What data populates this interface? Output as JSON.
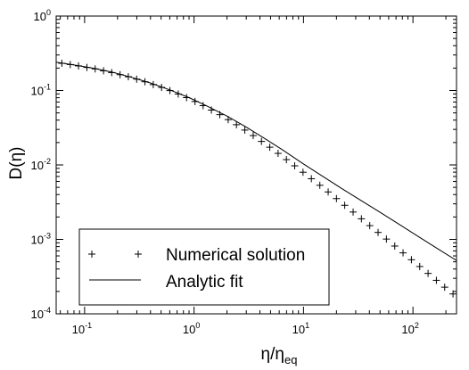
{
  "chart_data": {
    "type": "line",
    "xscale": "log",
    "yscale": "log",
    "xlim": [
      0.055,
      250
    ],
    "ylim": [
      0.0001,
      1
    ],
    "xticks": [
      {
        "base": "10",
        "exp": "-1",
        "value": 0.1
      },
      {
        "base": "10",
        "exp": "0",
        "value": 1
      },
      {
        "base": "10",
        "exp": "1",
        "value": 10
      },
      {
        "base": "10",
        "exp": "2",
        "value": 100
      }
    ],
    "yticks": [
      {
        "base": "10",
        "exp": "-4",
        "value": 0.0001
      },
      {
        "base": "10",
        "exp": "-3",
        "value": 0.001
      },
      {
        "base": "10",
        "exp": "-2",
        "value": 0.01
      },
      {
        "base": "10",
        "exp": "-1",
        "value": 0.1
      },
      {
        "base": "10",
        "exp": "0",
        "value": 1
      }
    ],
    "xlabel": {
      "main": "η/η",
      "sub": "eq"
    },
    "ylabel": "D(η)",
    "grid": false,
    "legend": {
      "placement": "bottom-left",
      "entries": [
        "Numerical solution",
        "Analytic fit"
      ]
    },
    "series": [
      {
        "name": "Numerical solution",
        "style": "markers-plus",
        "x": [
          0.062,
          0.074,
          0.088,
          0.105,
          0.125,
          0.149,
          0.177,
          0.211,
          0.251,
          0.299,
          0.356,
          0.424,
          0.505,
          0.602,
          0.717,
          0.854,
          1.02,
          1.21,
          1.44,
          1.72,
          2.05,
          2.44,
          2.91,
          3.47,
          4.13,
          4.92,
          5.86,
          6.98,
          8.31,
          9.9,
          11.8,
          14.1,
          16.8,
          20.0,
          23.8,
          28.4,
          33.8,
          40.3,
          48.0,
          57.2,
          68.2,
          81.2,
          96.8,
          115.3,
          137.4,
          163.7,
          195.0,
          232.3
        ],
        "y": [
          0.232,
          0.223,
          0.214,
          0.204,
          0.195,
          0.184,
          0.174,
          0.163,
          0.153,
          0.142,
          0.131,
          0.12,
          0.11,
          0.0997,
          0.0897,
          0.0802,
          0.0711,
          0.0626,
          0.0546,
          0.0473,
          0.0406,
          0.0347,
          0.0294,
          0.0248,
          0.0207,
          0.0173,
          0.0143,
          0.0118,
          0.00973,
          0.00798,
          0.00653,
          0.00533,
          0.00434,
          0.00353,
          0.00287,
          0.00233,
          0.00189,
          0.00153,
          0.00124,
          0.00101,
          0.000814,
          0.000659,
          0.000533,
          0.000432,
          0.000349,
          0.000282,
          0.000228,
          0.000185
        ],
        "y_note_removed": true
      },
      {
        "name": "Analytic fit",
        "style": "solid-line",
        "x": [
          0.055,
          0.08,
          0.12,
          0.18,
          0.27,
          0.4,
          0.6,
          0.9,
          1.3,
          2.0,
          3.0,
          4.5,
          6.5,
          10,
          15,
          22,
          33,
          50,
          75,
          110,
          165,
          250
        ],
        "y": [
          0.24,
          0.22,
          0.199,
          0.176,
          0.15,
          0.126,
          0.102,
          0.0802,
          0.0623,
          0.0453,
          0.0322,
          0.0223,
          0.0158,
          0.0103,
          0.00702,
          0.0049,
          0.00338,
          0.00231,
          0.00159,
          0.00111,
          0.000764,
          0.00052
        ]
      }
    ]
  }
}
